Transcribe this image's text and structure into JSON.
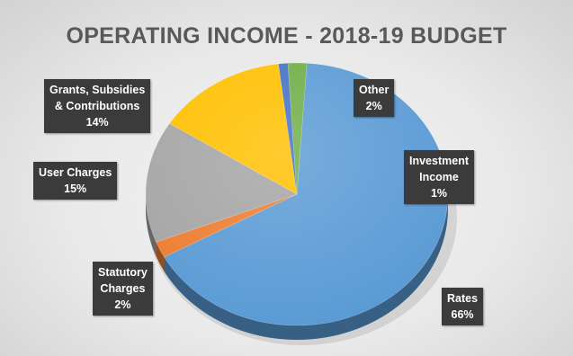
{
  "chart_data": {
    "type": "pie",
    "title": "OPERATING INCOME - 2018-19 BUDGET",
    "categories": [
      "Rates",
      "Statutory Charges",
      "User Charges",
      "Grants, Subsidies & Contributions",
      "Investment Income",
      "Other"
    ],
    "values": [
      66,
      2,
      15,
      14,
      1,
      2
    ],
    "data_labels": [
      "Rates 66%",
      "Statutory Charges 2%",
      "User Charges 15%",
      "Grants, Subsidies & Contributions 14%",
      "Investment Income 1%",
      "Other 2%"
    ],
    "colors": [
      "#5b9bd5",
      "#ed7d31",
      "#a5a5a5",
      "#ffc000",
      "#4472c4",
      "#70ad47"
    ],
    "legend": "none",
    "style": "3d"
  },
  "callouts": [
    {
      "id": "rates",
      "lines": [
        "Rates",
        "66%"
      ]
    },
    {
      "id": "statutory",
      "lines": [
        "Statutory",
        "Charges",
        "2%"
      ]
    },
    {
      "id": "user",
      "lines": [
        "User Charges",
        "15%"
      ]
    },
    {
      "id": "grants",
      "lines": [
        "Grants, Subsidies",
        "& Contributions",
        "14%"
      ]
    },
    {
      "id": "investment",
      "lines": [
        "Investment",
        "Income",
        "1%"
      ]
    },
    {
      "id": "other",
      "lines": [
        "Other",
        "2%"
      ]
    }
  ]
}
